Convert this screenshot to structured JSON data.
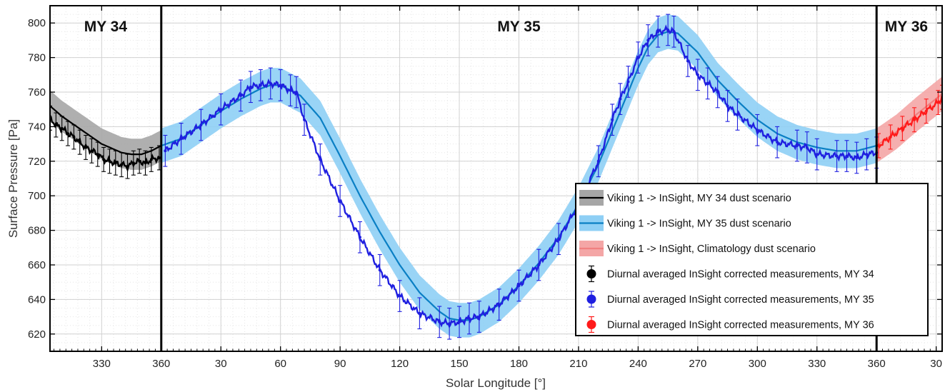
{
  "chart_data": {
    "type": "line",
    "xlabel": "Solar Longitude [°]",
    "ylabel": "Surface Pressure [Pa]",
    "xlim": [
      304,
      753
    ],
    "ylim": [
      610,
      810
    ],
    "x_continuous_note_removed": true,
    "x_ticks": [
      330,
      360,
      390,
      420,
      450,
      480,
      510,
      540,
      570,
      600,
      630,
      660,
      690,
      720,
      750
    ],
    "x_tick_labels": [
      "330",
      "360",
      "30",
      "60",
      "90",
      "120",
      "150",
      "180",
      "210",
      "240",
      "270",
      "300",
      "330",
      "360",
      "30"
    ],
    "y_ticks": [
      620,
      640,
      660,
      680,
      700,
      720,
      740,
      760,
      780,
      800
    ],
    "y_tick_labels": [
      "620",
      "640",
      "660",
      "680",
      "700",
      "720",
      "740",
      "760",
      "780",
      "800"
    ],
    "grid": true,
    "year_boundaries": [
      360,
      720
    ],
    "year_labels": [
      {
        "text": "MY 34",
        "x": 332
      },
      {
        "text": "MY 35",
        "x": 540
      },
      {
        "text": "MY 36",
        "x": 735
      }
    ],
    "colors": {
      "model_my34": "#000000",
      "band_my34": "#a6a6a6",
      "model_my35": "#0a7fc4",
      "band_my35": "#8ecff5",
      "model_clim": "#f08080",
      "band_clim": "#f4a6a6",
      "meas_my34": "#000000",
      "meas_my35": "#1f1fe0",
      "meas_my36": "#ff1a1a"
    },
    "series": [
      {
        "name": "Viking 1 -> InSight, MY 34 dust scenario",
        "kind": "model",
        "band_halfwidth": 9,
        "x": [
          304,
          310,
          320,
          330,
          340,
          345,
          350,
          355,
          360
        ],
        "y": [
          752,
          746,
          738,
          730,
          725,
          724,
          724,
          726,
          729
        ]
      },
      {
        "name": "Viking 1 -> InSight, MY 35 dust scenario",
        "kind": "model",
        "band_halfwidth": 10,
        "x": [
          360,
          370,
          380,
          390,
          400,
          410,
          415,
          420,
          430,
          440,
          450,
          460,
          470,
          480,
          490,
          500,
          505,
          510,
          515,
          520,
          530,
          540,
          550,
          560,
          570,
          580,
          590,
          600,
          605,
          610,
          615,
          620,
          630,
          640,
          650,
          660,
          670,
          680,
          690,
          700,
          710,
          720
        ],
        "y": [
          729,
          733,
          741,
          749,
          756,
          762,
          764,
          764,
          758,
          745,
          723,
          700,
          679,
          660,
          644,
          633,
          629,
          628,
          628,
          630,
          637,
          648,
          661,
          676,
          695,
          718,
          746,
          774,
          786,
          793,
          795,
          794,
          783,
          767,
          755,
          744,
          736,
          731,
          728,
          726,
          726,
          729
        ]
      },
      {
        "name": "Viking 1 -> InSight, Climatology dust scenario",
        "kind": "model",
        "band_halfwidth": 10,
        "x": [
          720,
          730,
          740,
          753
        ],
        "y": [
          729,
          737,
          747,
          759
        ]
      },
      {
        "name": "Diurnal averaged InSight corrected measurements, MY 34",
        "kind": "measurement",
        "errorbar": 7,
        "x": [
          304,
          307,
          310,
          313,
          316,
          319,
          322,
          325,
          328,
          331,
          334,
          337,
          340,
          343,
          346,
          349,
          352,
          355,
          359
        ],
        "y": [
          745,
          741,
          739,
          736,
          734,
          731,
          728,
          726,
          724,
          721,
          720,
          719,
          718,
          717,
          719,
          720,
          719,
          721,
          722
        ]
      },
      {
        "name": "Diurnal averaged InSight corrected measurements, MY 35",
        "kind": "measurement",
        "errorbar": 9,
        "x": [
          362,
          370,
          380,
          390,
          400,
          405,
          410,
          415,
          420,
          425,
          428,
          432,
          440,
          450,
          460,
          470,
          480,
          490,
          500,
          505,
          510,
          515,
          520,
          530,
          540,
          550,
          560,
          570,
          580,
          587,
          591,
          595,
          600,
          605,
          610,
          615,
          618,
          625,
          630,
          635,
          640,
          645,
          650,
          660,
          670,
          680,
          685,
          690,
          700,
          705,
          710,
          715,
          720
        ],
        "y": [
          726,
          733,
          741,
          750,
          758,
          763,
          764,
          765,
          764,
          761,
          760,
          744,
          721,
          697,
          676,
          657,
          642,
          632,
          627,
          626,
          627,
          629,
          630,
          637,
          648,
          660,
          675,
          695,
          720,
          744,
          756,
          766,
          780,
          790,
          795,
          796,
          795,
          778,
          770,
          765,
          760,
          752,
          747,
          738,
          731,
          729,
          728,
          724,
          723,
          723,
          722,
          724,
          725
        ]
      },
      {
        "name": "Diurnal averaged InSight corrected measurements, MY 36",
        "kind": "measurement",
        "errorbar": 7,
        "x": [
          721,
          727,
          733,
          739,
          745,
          751,
          753
        ],
        "y": [
          729,
          734,
          739,
          744,
          749,
          754,
          757
        ]
      }
    ],
    "legend": {
      "position": "lower-right",
      "entries": [
        {
          "label": "Viking 1 -> InSight, MY 34 dust scenario",
          "kind": "band",
          "line": "#000000",
          "band": "#a6a6a6"
        },
        {
          "label": "Viking 1 -> InSight, MY 35 dust scenario",
          "kind": "band",
          "line": "#0a7fc4",
          "band": "#8ecff5"
        },
        {
          "label": "Viking 1 -> InSight, Climatology dust scenario",
          "kind": "band",
          "line": "#f08080",
          "band": "#f4a6a6"
        },
        {
          "label": "Diurnal averaged InSight corrected measurements, MY 34",
          "kind": "errorbar",
          "color": "#000000"
        },
        {
          "label": "Diurnal averaged InSight corrected measurements, MY 35",
          "kind": "errorbar",
          "color": "#1f1fe0"
        },
        {
          "label": "Diurnal averaged InSight corrected measurements, MY 36",
          "kind": "errorbar",
          "color": "#ff1a1a"
        }
      ]
    }
  }
}
